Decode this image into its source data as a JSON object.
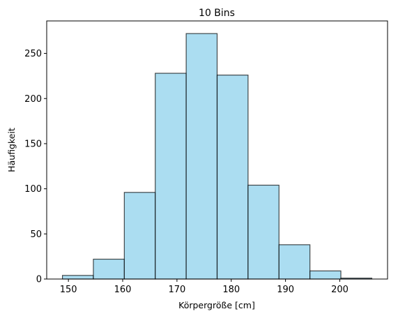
{
  "chart_data": {
    "type": "bar",
    "title": "10 Bins",
    "xlabel": "Körpergröße [cm]",
    "ylabel": "Häufigkeit",
    "bin_edges": [
      148.9,
      154.6,
      160.3,
      166.0,
      171.7,
      177.4,
      183.1,
      188.8,
      194.5,
      200.2,
      205.9
    ],
    "values": [
      4,
      22,
      96,
      228,
      272,
      226,
      104,
      38,
      9,
      1
    ],
    "xlim": [
      146.0,
      208.8
    ],
    "ylim": [
      0,
      286
    ],
    "xticks": [
      150,
      160,
      170,
      180,
      190,
      200
    ],
    "yticks": [
      0,
      50,
      100,
      150,
      200,
      250
    ],
    "bar_color": "#87CEEB",
    "bar_alpha": 0.7,
    "edge_color": "#000000",
    "grid": false
  }
}
